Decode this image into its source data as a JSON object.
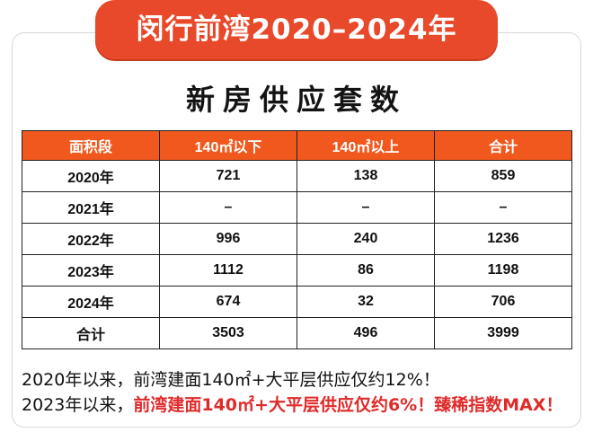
{
  "banner": {
    "title": "闵行前湾2020–2024年",
    "color": "#e8492a"
  },
  "subtitle": "新房供应套数",
  "table": {
    "header_color": "#f0581d",
    "columns": [
      "面积段",
      "140㎡以下",
      "140㎡以上",
      "合计"
    ],
    "rows": [
      [
        "2020年",
        "721",
        "138",
        "859"
      ],
      [
        "2021年",
        "–",
        "–",
        "–"
      ],
      [
        "2022年",
        "996",
        "240",
        "1236"
      ],
      [
        "2023年",
        "1112",
        "86",
        "1198"
      ],
      [
        "2024年",
        "674",
        "32",
        "706"
      ],
      [
        "合计",
        "3503",
        "496",
        "3999"
      ]
    ]
  },
  "notes": {
    "line1": "2020年以来，前湾建面140㎡+大平层供应仅约12%！",
    "line2_prefix": "2023年以来，",
    "line2_highlight": "前湾建面140㎡+大平层供应仅约6%！臻稀指数MAX！",
    "highlight_color": "#e02a2a"
  }
}
